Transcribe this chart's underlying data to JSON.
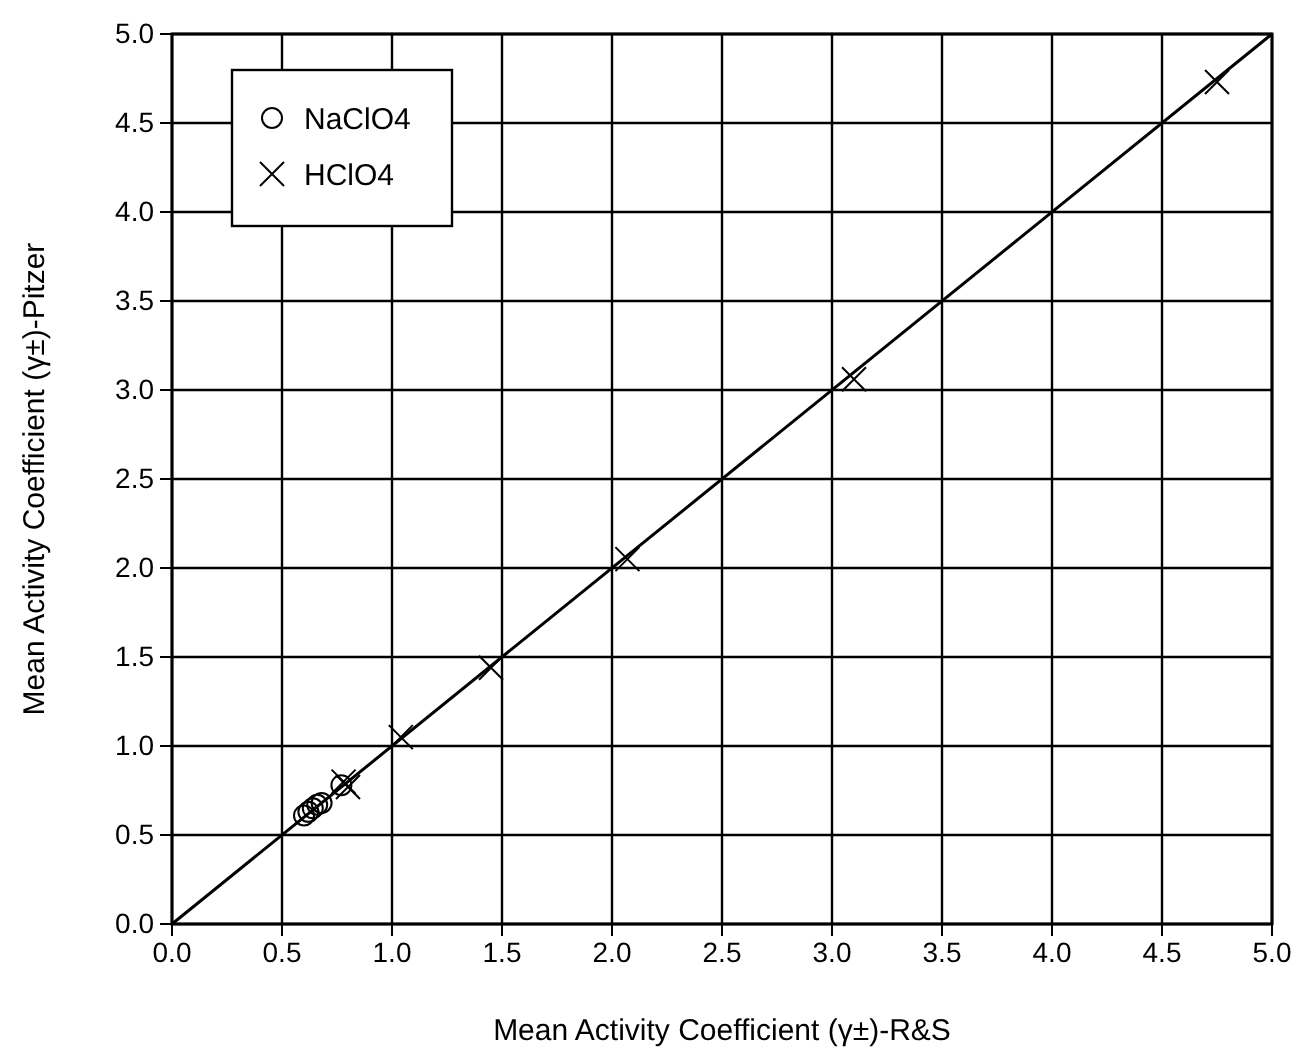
{
  "chart_data": {
    "type": "scatter",
    "xlabel": "Mean Activity Coefficient (γ±)-R&S",
    "ylabel": "Mean Activity Coefficient (γ±)-Pitzer",
    "xlim": [
      0,
      5
    ],
    "ylim": [
      0,
      5
    ],
    "xticks": [
      {
        "value": 0,
        "label": "0.0"
      },
      {
        "value": 0.5,
        "label": "0.5"
      },
      {
        "value": 1,
        "label": "1.0"
      },
      {
        "value": 1.5,
        "label": "1.5"
      },
      {
        "value": 2,
        "label": "2.0"
      },
      {
        "value": 2.5,
        "label": "2.5"
      },
      {
        "value": 3,
        "label": "3.0"
      },
      {
        "value": 3.5,
        "label": "3.5"
      },
      {
        "value": 4,
        "label": "4.0"
      },
      {
        "value": 4.5,
        "label": "4.5"
      },
      {
        "value": 5,
        "label": "5.0"
      }
    ],
    "yticks": [
      {
        "value": 0,
        "label": "0.0"
      },
      {
        "value": 0.5,
        "label": "0.5"
      },
      {
        "value": 1,
        "label": "1.0"
      },
      {
        "value": 1.5,
        "label": "1.5"
      },
      {
        "value": 2,
        "label": "2.0"
      },
      {
        "value": 2.5,
        "label": "2.5"
      },
      {
        "value": 3,
        "label": "3.0"
      },
      {
        "value": 3.5,
        "label": "3.5"
      },
      {
        "value": 4,
        "label": "4.0"
      },
      {
        "value": 4.5,
        "label": "4.5"
      },
      {
        "value": 5,
        "label": "5.0"
      }
    ],
    "grid": true,
    "legend": "top left",
    "series": [
      {
        "name": "NaClO4",
        "type": "scatter",
        "marker": "circle",
        "color": "#000000",
        "x": [
          0.6,
          0.62,
          0.64,
          0.66,
          0.68,
          0.77
        ],
        "values": [
          0.61,
          0.63,
          0.65,
          0.67,
          0.68,
          0.78
        ]
      },
      {
        "name": "HClO4",
        "type": "scatter",
        "marker": "cross",
        "color": "#000000",
        "x": [
          0.78,
          0.8,
          1.04,
          1.45,
          2.07,
          3.1,
          4.75
        ],
        "values": [
          0.8,
          0.77,
          1.05,
          1.44,
          2.05,
          3.06,
          4.73
        ]
      },
      {
        "type": "line",
        "marker": "none",
        "color": "#000000",
        "x": [
          0,
          5
        ],
        "values": [
          0,
          5
        ]
      }
    ]
  }
}
